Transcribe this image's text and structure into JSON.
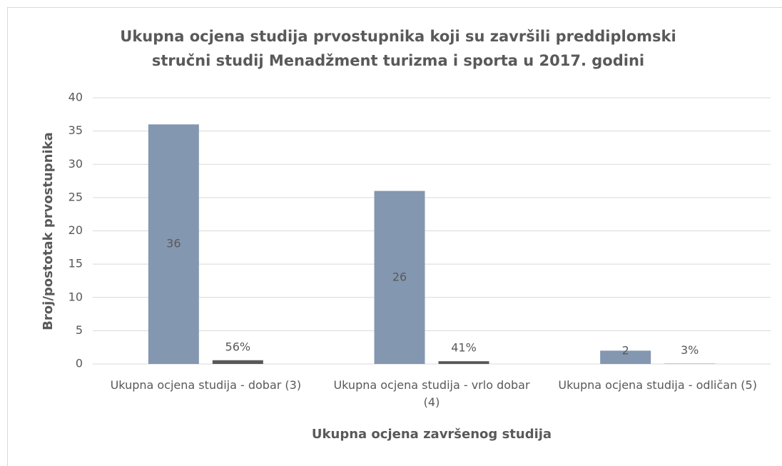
{
  "chart_data": {
    "type": "bar",
    "title": "Ukupna ocjena studija prvostupnika koji su završili preddiplomski stručni studij Menadžment turizma i sporta u 2017. godini",
    "xlabel": "Ukupna ocjena završenog studija",
    "ylabel": "Broj/postotak prvostupnika",
    "categories": [
      "Ukupna ocjena studija - dobar (3)",
      "Ukupna ocjena studija - vrlo dobar (4)",
      "Ukupna ocjena studija - odličan (5)"
    ],
    "series": [
      {
        "color": "#8497b0",
        "values": [
          36,
          26,
          2
        ]
      },
      {
        "color": "#595959",
        "values": [
          0.56,
          0.41,
          0.03
        ],
        "value_labels": [
          "56%",
          "41%",
          "3%"
        ]
      }
    ],
    "ylim": [
      0,
      40
    ],
    "yticks": [
      0,
      5,
      10,
      15,
      20,
      25,
      30,
      35,
      40
    ],
    "grid": true
  }
}
